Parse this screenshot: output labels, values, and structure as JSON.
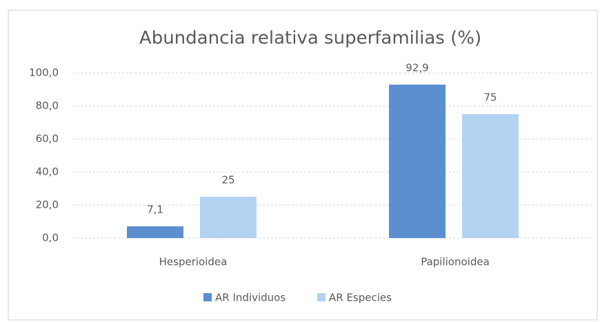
{
  "chart_data": {
    "type": "bar",
    "title": "Abundancia relativa superfamilias (%)",
    "categories": [
      "Hesperioidea",
      "Papilionoidea"
    ],
    "series": [
      {
        "name": "AR Individuos",
        "color": "#5b8fd0",
        "values": [
          7.1,
          92.9
        ],
        "value_labels": [
          "7,1",
          "92,9"
        ]
      },
      {
        "name": "AR Especies",
        "color": "#b3d3f3",
        "values": [
          25,
          75
        ]
      }
    ],
    "ylim": [
      0,
      100
    ],
    "yticks": [
      {
        "value": 0,
        "label": "0,0"
      },
      {
        "value": 20,
        "label": "20,0"
      },
      {
        "value": 40,
        "label": "40,0"
      },
      {
        "value": 60,
        "label": "60,0"
      },
      {
        "value": 80,
        "label": "80,0"
      },
      {
        "value": 100,
        "label": "100,0"
      }
    ],
    "grid": true,
    "legend": "bottom"
  }
}
